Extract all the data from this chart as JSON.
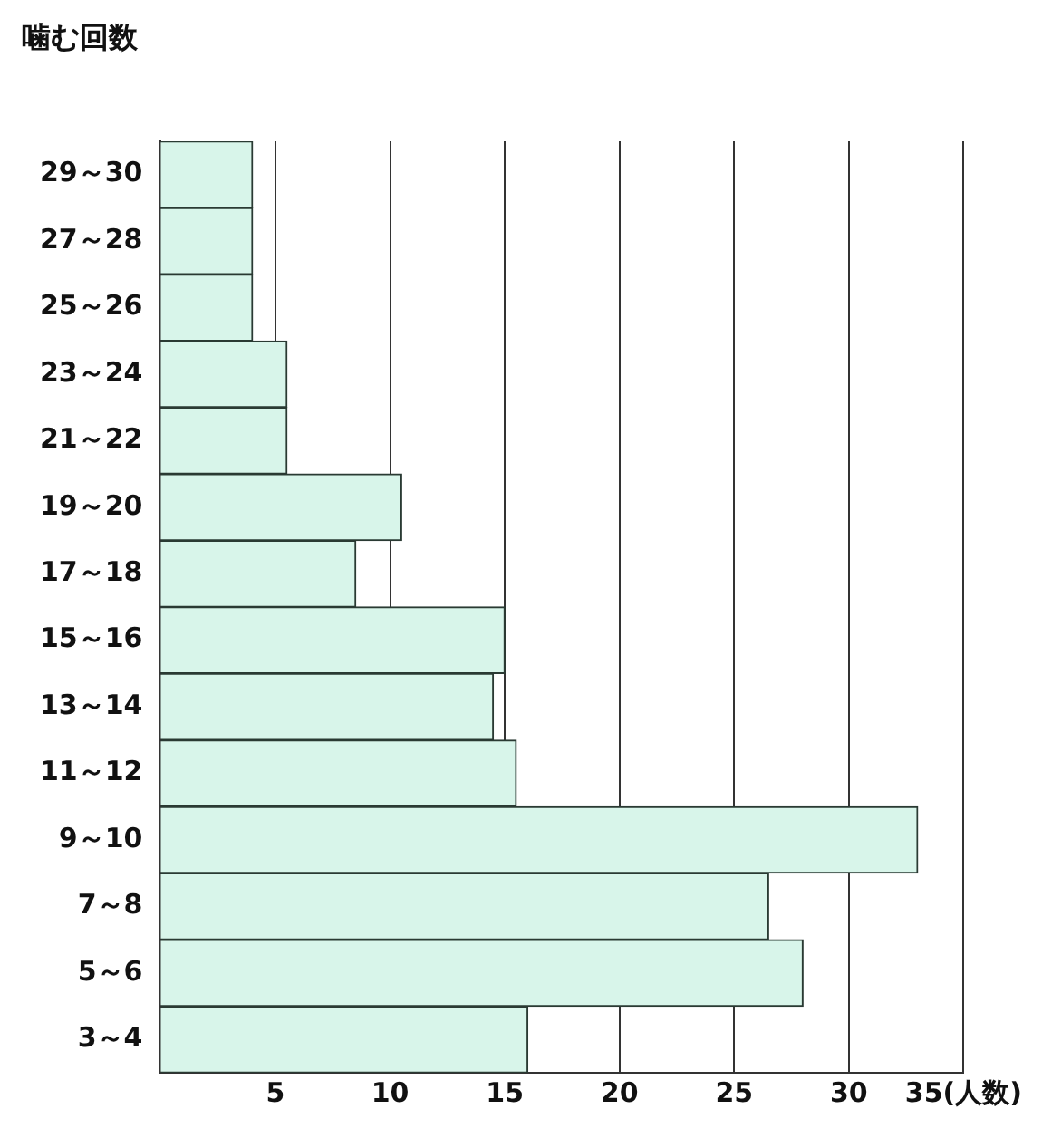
{
  "chart_data": {
    "type": "bar",
    "orientation": "horizontal",
    "ylabel": "噛む回数",
    "categories": [
      "29～30",
      "27～28",
      "25～26",
      "23～24",
      "21～22",
      "19～20",
      "17～18",
      "15～16",
      "13～14",
      "11～12",
      "9～10",
      "7～8",
      "5～6",
      "3～4"
    ],
    "values": [
      4,
      4,
      4,
      5.5,
      5.5,
      10.5,
      8.5,
      15,
      14.5,
      15.5,
      33,
      26.5,
      28,
      16
    ],
    "color": "#d8f5ea",
    "xlim": [
      0,
      35
    ],
    "xticks": [
      5,
      10,
      15,
      20,
      25,
      30,
      {
        "value": 35,
        "label": "35(人数)"
      }
    ],
    "grid": "x"
  }
}
